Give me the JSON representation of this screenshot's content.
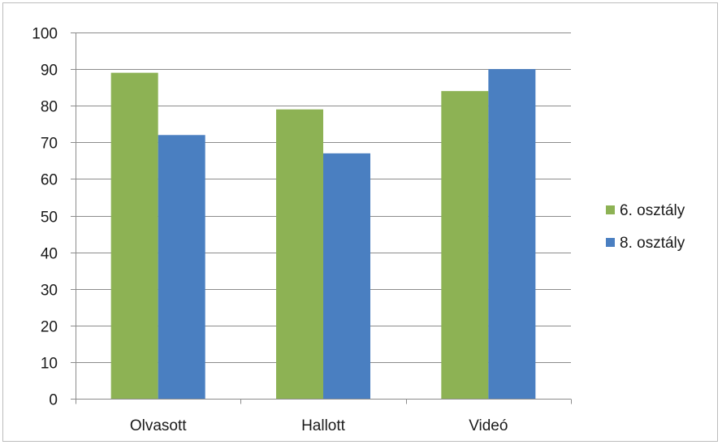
{
  "chart_data": {
    "type": "bar",
    "categories": [
      "Olvasott",
      "Hallott",
      "Videó"
    ],
    "series": [
      {
        "name": "6. osztály",
        "color": "#8db254",
        "values": [
          89,
          79,
          84
        ]
      },
      {
        "name": "8. osztály",
        "color": "#4a7fc1",
        "values": [
          72,
          67,
          90
        ]
      }
    ],
    "ylim": [
      0,
      100
    ],
    "yticks": [
      0,
      10,
      20,
      30,
      40,
      50,
      60,
      70,
      80,
      90,
      100
    ],
    "grid": true,
    "legend": "right",
    "gridline_color": "#8c8c8c",
    "axis_color": "#8c8c8c"
  }
}
